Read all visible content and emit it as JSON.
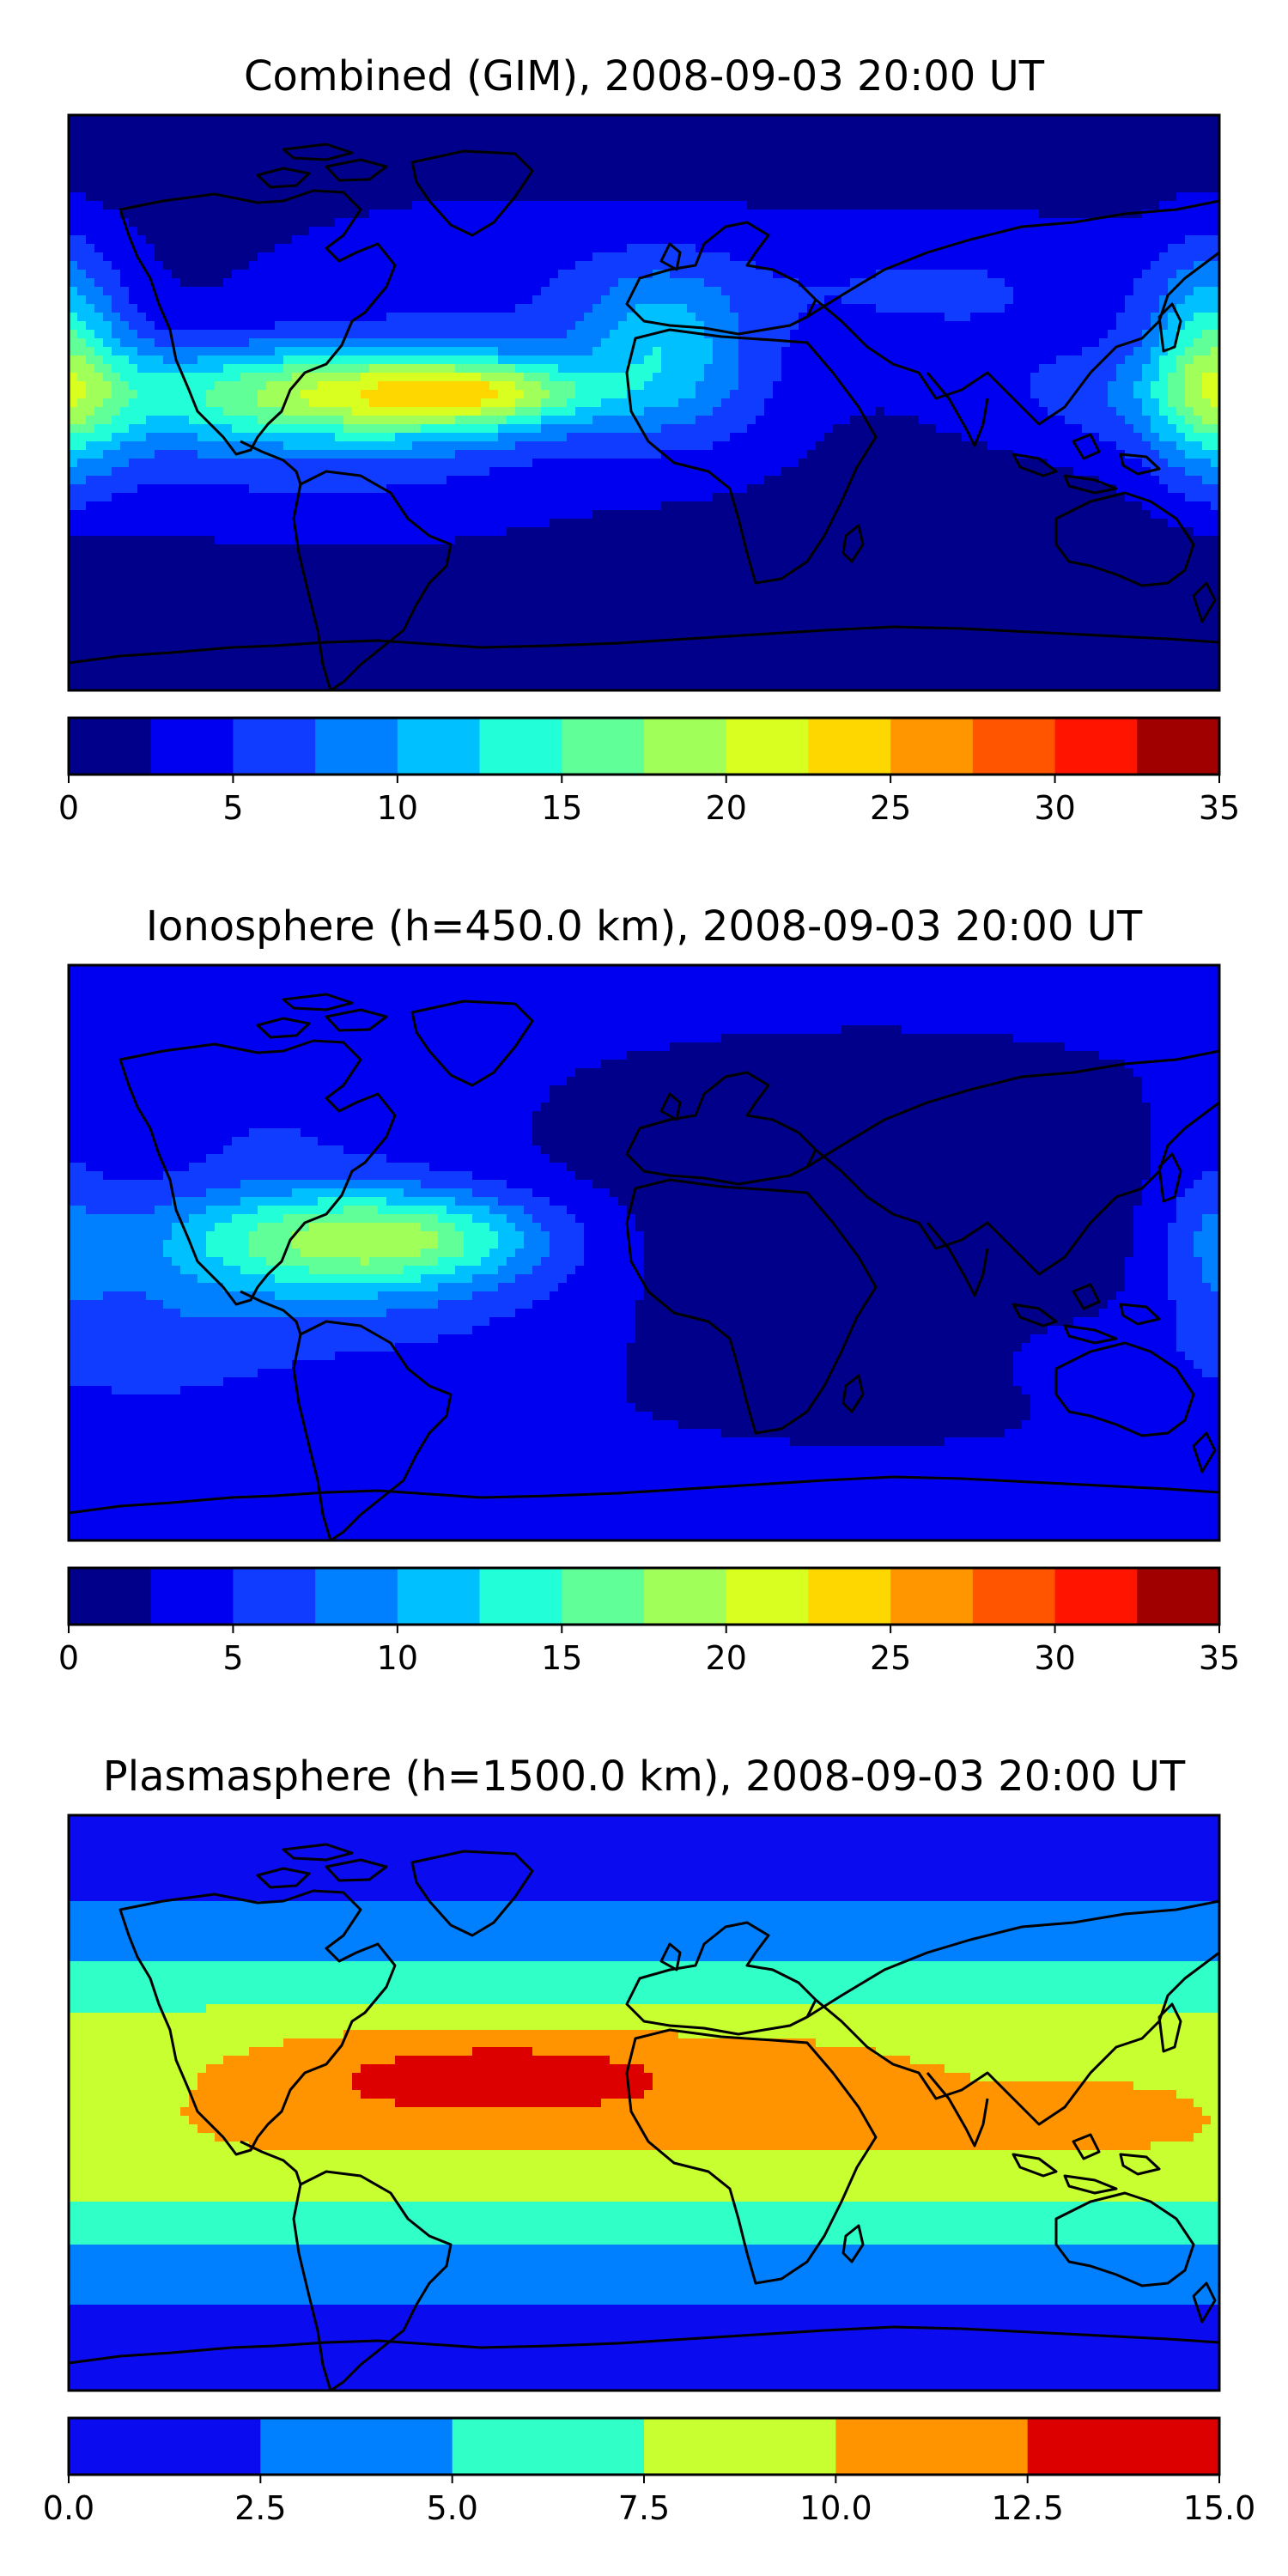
{
  "chart_data": [
    {
      "type": "heatmap",
      "title": "Combined (GIM), 2008-09-03 20:00 UT",
      "colorbar": {
        "ticks": [
          "0",
          "5",
          "10",
          "15",
          "20",
          "25",
          "30",
          "35"
        ],
        "levels": [
          0,
          2.5,
          5,
          7.5,
          10,
          12.5,
          15,
          17.5,
          20,
          22.5,
          25,
          27.5,
          30,
          32.5,
          35
        ],
        "colors": [
          "#00008b",
          "#0000f0",
          "#0f3cff",
          "#0080ff",
          "#00c0ff",
          "#22ffd8",
          "#60ff98",
          "#a0ff58",
          "#d8ff20",
          "#ffd700",
          "#ff9600",
          "#ff5500",
          "#ff1400",
          "#a00000"
        ]
      },
      "field": {
        "background": 1,
        "blobs": [
          {
            "lon": -130,
            "lat": 3,
            "sx": 55,
            "sy": 12,
            "amp": 9
          },
          {
            "lon": -70,
            "lat": 3,
            "sx": 40,
            "sy": 10,
            "amp": 13
          },
          {
            "lon": -48,
            "lat": 3,
            "sx": 22,
            "sy": 6,
            "amp": 6
          },
          {
            "lon": -100,
            "lat": -20,
            "sx": 70,
            "sy": 18,
            "amp": 4
          },
          {
            "lon": -40,
            "lat": 40,
            "sx": 60,
            "sy": 18,
            "amp": 4
          },
          {
            "lon": 5,
            "lat": 20,
            "sx": 18,
            "sy": 16,
            "amp": 7
          },
          {
            "lon": 20,
            "lat": 0,
            "sx": 25,
            "sy": 18,
            "amp": 3
          },
          {
            "lon": 178,
            "lat": 12,
            "sx": 14,
            "sy": 25,
            "amp": 12
          },
          {
            "lon": 140,
            "lat": 0,
            "sx": 40,
            "sy": 12,
            "amp": 2
          },
          {
            "lon": 100,
            "lat": 35,
            "sx": 50,
            "sy": 18,
            "amp": 4
          },
          {
            "lon": -40,
            "lat": 45,
            "sx": 40,
            "sy": 10,
            "amp": -1
          },
          {
            "lon": 100,
            "lat": -45,
            "sx": 50,
            "sy": 8,
            "amp": -2
          }
        ]
      },
      "xrange": [
        -180,
        180
      ],
      "yrange": [
        -90,
        90
      ],
      "grid": false
    },
    {
      "type": "heatmap",
      "title": "Ionosphere  (h=450.0 km), 2008-09-03 20:00 UT",
      "colorbar": {
        "ticks": [
          "0",
          "5",
          "10",
          "15",
          "20",
          "25",
          "30",
          "35"
        ],
        "levels": [
          0,
          2.5,
          5,
          7.5,
          10,
          12.5,
          15,
          17.5,
          20,
          22.5,
          25,
          27.5,
          30,
          32.5,
          35
        ],
        "colors": [
          "#00008b",
          "#0000f0",
          "#0f3cff",
          "#0080ff",
          "#00c0ff",
          "#22ffd8",
          "#60ff98",
          "#a0ff58",
          "#d8ff20",
          "#ffd700",
          "#ff9600",
          "#ff5500",
          "#ff1400",
          "#a00000"
        ]
      },
      "field": {
        "background": 3,
        "blobs": [
          {
            "lon": 70,
            "lat": 5,
            "sx": 85,
            "sy": 35,
            "amp": -2.8
          },
          {
            "lon": -110,
            "lat": 5,
            "sx": 40,
            "sy": 12,
            "amp": 9
          },
          {
            "lon": -70,
            "lat": 5,
            "sx": 30,
            "sy": 10,
            "amp": 8
          },
          {
            "lon": -90,
            "lat": -10,
            "sx": 55,
            "sy": 18,
            "amp": 4
          },
          {
            "lon": -160,
            "lat": -30,
            "sx": 30,
            "sy": 15,
            "amp": 3
          },
          {
            "lon": -120,
            "lat": 40,
            "sx": 40,
            "sy": 12,
            "amp": 2
          },
          {
            "lon": 178,
            "lat": 5,
            "sx": 12,
            "sy": 20,
            "amp": 4
          },
          {
            "lon": 130,
            "lat": -30,
            "sx": 20,
            "sy": 10,
            "amp": 1
          }
        ]
      },
      "xrange": [
        -180,
        180
      ],
      "yrange": [
        -90,
        90
      ],
      "grid": false
    },
    {
      "type": "heatmap",
      "title": "Plasmasphere (h=1500.0 km), 2008-09-03 20:00 UT",
      "colorbar": {
        "ticks": [
          "0.0",
          "2.5",
          "5.0",
          "7.5",
          "10.0",
          "12.5",
          "15.0"
        ],
        "levels": [
          0,
          2.5,
          5,
          7.5,
          10,
          12.5,
          15
        ],
        "colors": [
          "#0b0bf0",
          "#0080ff",
          "#30ffc8",
          "#c8ff30",
          "#ff9300",
          "#dc0000"
        ]
      },
      "field": {
        "background": 0.5,
        "bands": [
          {
            "lat": 0,
            "sy": 34,
            "amp": 10.5
          }
        ],
        "blobs": [
          {
            "lon": -45,
            "lat": 10,
            "sx": 45,
            "sy": 10,
            "amp": 3.2
          },
          {
            "lon": -160,
            "lat": 5,
            "sx": 25,
            "sy": 15,
            "amp": -1.5
          },
          {
            "lon": 120,
            "lat": 10,
            "sx": 40,
            "sy": 10,
            "amp": -1
          },
          {
            "lon": 70,
            "lat": 20,
            "sx": 40,
            "sy": 10,
            "amp": 0.5
          }
        ]
      },
      "xrange": [
        -180,
        180
      ],
      "yrange": [
        -90,
        90
      ],
      "grid": false
    }
  ]
}
